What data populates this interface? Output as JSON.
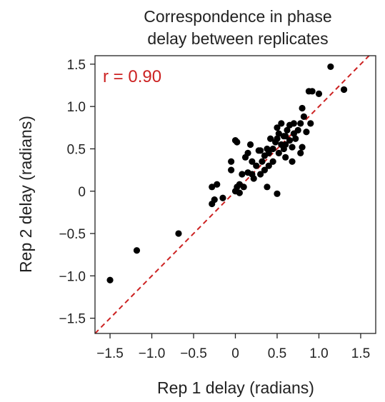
{
  "chart_data": {
    "type": "scatter",
    "title": [
      "Correspondence in phase",
      "delay between replicates"
    ],
    "xlabel": "Rep 1 delay (radians)",
    "ylabel": "Rep 2 delay (radians)",
    "xlim": [
      -1.68,
      1.68
    ],
    "ylim": [
      -1.68,
      1.6
    ],
    "xticks": [
      -1.5,
      -1.0,
      -0.5,
      0,
      0.5,
      1.0,
      1.5
    ],
    "xtick_labels": [
      "−1.5",
      "−1.0",
      "−0.5",
      "0",
      "0.5",
      "1.0",
      "1.5"
    ],
    "yticks": [
      -1.5,
      -1.0,
      -0.5,
      0,
      0.5,
      1.0,
      1.5
    ],
    "ytick_labels": [
      "−1.5",
      "−1.0",
      "−0.5",
      "0",
      "0.5",
      "1.0",
      "1.5"
    ],
    "grid": false,
    "annotation": {
      "text": "r = 0.90",
      "color": "#cc2222"
    },
    "reference_line": {
      "style": "dashed",
      "color": "#cc2222",
      "slope": 1,
      "intercept": 0
    },
    "point_color": "#000000",
    "points": [
      [
        -1.5,
        -1.05
      ],
      [
        -1.18,
        -0.7
      ],
      [
        -0.68,
        -0.5
      ],
      [
        -0.28,
        -0.15
      ],
      [
        -0.25,
        -0.1
      ],
      [
        -0.28,
        0.05
      ],
      [
        -0.22,
        0.08
      ],
      [
        -0.15,
        -0.08
      ],
      [
        -0.05,
        0.35
      ],
      [
        -0.05,
        0.25
      ],
      [
        0.0,
        0.6
      ],
      [
        0.02,
        0.58
      ],
      [
        0.0,
        0.0
      ],
      [
        0.02,
        0.05
      ],
      [
        0.05,
        -0.02
      ],
      [
        0.05,
        0.08
      ],
      [
        0.08,
        0.2
      ],
      [
        0.1,
        0.05
      ],
      [
        0.12,
        0.4
      ],
      [
        0.15,
        0.45
      ],
      [
        0.15,
        0.22
      ],
      [
        0.18,
        0.55
      ],
      [
        0.2,
        0.2
      ],
      [
        0.2,
        0.35
      ],
      [
        0.22,
        0.15
      ],
      [
        0.25,
        0.3
      ],
      [
        0.28,
        0.48
      ],
      [
        0.3,
        0.48
      ],
      [
        0.3,
        0.2
      ],
      [
        0.32,
        0.35
      ],
      [
        0.35,
        0.25
      ],
      [
        0.35,
        0.42
      ],
      [
        0.38,
        0.5
      ],
      [
        0.4,
        0.45
      ],
      [
        0.4,
        0.3
      ],
      [
        0.45,
        0.5
      ],
      [
        0.45,
        0.35
      ],
      [
        0.48,
        0.58
      ],
      [
        0.5,
        0.62
      ],
      [
        0.52,
        0.68
      ],
      [
        0.52,
        0.45
      ],
      [
        0.55,
        0.55
      ],
      [
        0.55,
        0.8
      ],
      [
        0.58,
        0.5
      ],
      [
        0.6,
        0.4
      ],
      [
        0.6,
        0.65
      ],
      [
        0.62,
        0.72
      ],
      [
        0.65,
        0.6
      ],
      [
        0.65,
        0.78
      ],
      [
        0.68,
        0.52
      ],
      [
        0.7,
        0.8
      ],
      [
        0.72,
        0.62
      ],
      [
        0.75,
        0.72
      ],
      [
        0.78,
        0.8
      ],
      [
        0.78,
        0.45
      ],
      [
        0.8,
        0.52
      ],
      [
        0.8,
        0.98
      ],
      [
        0.82,
        0.88
      ],
      [
        0.85,
        0.7
      ],
      [
        0.88,
        1.18
      ],
      [
        0.9,
        0.8
      ],
      [
        0.92,
        1.18
      ],
      [
        1.0,
        1.15
      ],
      [
        1.14,
        1.47
      ],
      [
        1.3,
        1.2
      ],
      [
        0.38,
        0.05
      ],
      [
        0.5,
        -0.03
      ],
      [
        0.58,
        0.65
      ],
      [
        0.42,
        0.62
      ],
      [
        0.6,
        0.55
      ],
      [
        0.5,
        0.75
      ],
      [
        0.7,
        0.68
      ],
      [
        0.68,
        0.35
      ]
    ]
  }
}
